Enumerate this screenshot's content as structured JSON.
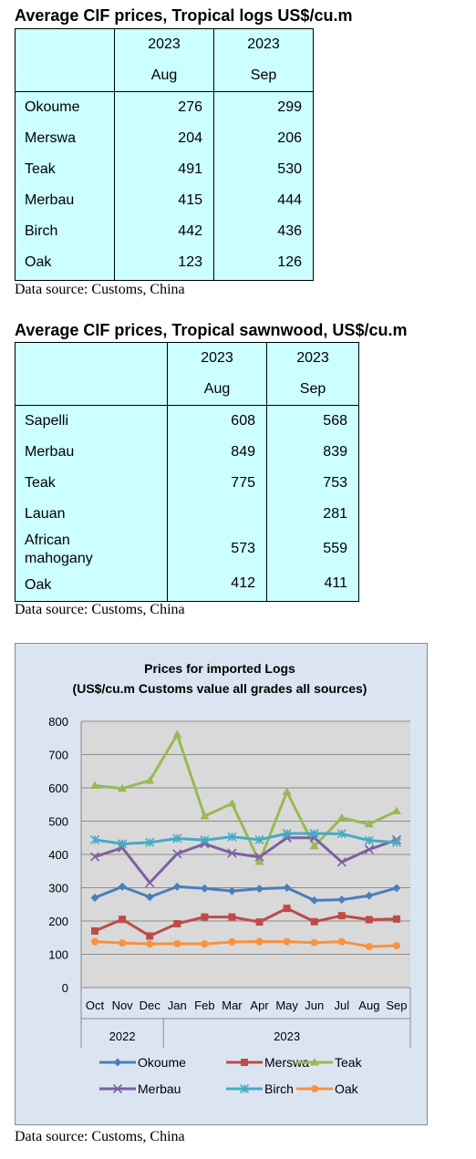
{
  "logs_table": {
    "title": "Average CIF prices, Tropical logs US$/cu.m",
    "col_headers": [
      {
        "year": "2023",
        "month": "Aug"
      },
      {
        "year": "2023",
        "month": "Sep"
      }
    ],
    "rows": [
      {
        "name": "Okoume",
        "aug": "276",
        "sep": "299"
      },
      {
        "name": "Merswa",
        "aug": "204",
        "sep": "206"
      },
      {
        "name": "Teak",
        "aug": "491",
        "sep": "530"
      },
      {
        "name": "Merbau",
        "aug": "415",
        "sep": "444"
      },
      {
        "name": "Birch",
        "aug": "442",
        "sep": "436"
      },
      {
        "name": "Oak",
        "aug": "123",
        "sep": "126"
      }
    ],
    "source": "Data source: Customs, China"
  },
  "sawnwood_table": {
    "title": "Average CIF prices, Tropical sawnwood, US$/cu.m",
    "col_headers": [
      {
        "year": "2023",
        "month": "Aug"
      },
      {
        "year": "2023",
        "month": "Sep"
      }
    ],
    "rows": [
      {
        "name": "Sapelli",
        "aug": "608",
        "sep": "568"
      },
      {
        "name": "Merbau",
        "aug": "849",
        "sep": "839"
      },
      {
        "name": "Teak",
        "aug": "775",
        "sep": "753"
      },
      {
        "name": "Lauan",
        "aug": "",
        "sep": "281"
      },
      {
        "name": "African mahogany",
        "name_lines": [
          "African",
          "mahogany"
        ],
        "aug": "573",
        "sep": "559"
      },
      {
        "name": "Oak",
        "aug": "412",
        "sep": "411"
      }
    ],
    "source": "Data source: Customs, China"
  },
  "chart_data": {
    "type": "line",
    "title": "Prices for imported Logs",
    "subtitle": "(US$/cu.m Customs value all grades all sources)",
    "categories": [
      "Oct",
      "Nov",
      "Dec",
      "Jan",
      "Feb",
      "Mar",
      "Apr",
      "May",
      "Jun",
      "Jul",
      "Aug",
      "Sep"
    ],
    "year_groups": [
      {
        "label": "2022",
        "count": 3
      },
      {
        "label": "2023",
        "count": 9
      }
    ],
    "ylim": [
      0,
      800
    ],
    "yticks": [
      "0",
      "100",
      "200",
      "300",
      "400",
      "500",
      "600",
      "700",
      "800"
    ],
    "grid": true,
    "legend_position": "bottom",
    "series": [
      {
        "name": "Okoume",
        "color": "#4a7ebb",
        "marker": "diamond",
        "values": [
          270,
          303,
          272,
          303,
          298,
          290,
          297,
          300,
          262,
          264,
          276,
          299
        ]
      },
      {
        "name": "Merswa",
        "color": "#be4b48",
        "marker": "square",
        "values": [
          170,
          205,
          155,
          192,
          212,
          212,
          197,
          238,
          198,
          216,
          204,
          206
        ]
      },
      {
        "name": "Teak",
        "color": "#98b954",
        "marker": "triangle",
        "values": [
          607,
          598,
          622,
          760,
          515,
          553,
          378,
          588,
          425,
          510,
          491,
          530
        ]
      },
      {
        "name": "Merbau",
        "color": "#7d60a0",
        "marker": "x",
        "values": [
          393,
          420,
          315,
          402,
          432,
          404,
          392,
          450,
          450,
          377,
          415,
          444
        ]
      },
      {
        "name": "Birch",
        "color": "#46aac5",
        "marker": "star",
        "values": [
          444,
          432,
          436,
          448,
          443,
          453,
          444,
          463,
          463,
          462,
          442,
          436
        ]
      },
      {
        "name": "Oak",
        "color": "#f69240",
        "marker": "circle",
        "values": [
          138,
          134,
          131,
          132,
          131,
          137,
          138,
          138,
          135,
          138,
          123,
          126
        ]
      }
    ],
    "source": "Data source: Customs, China"
  }
}
